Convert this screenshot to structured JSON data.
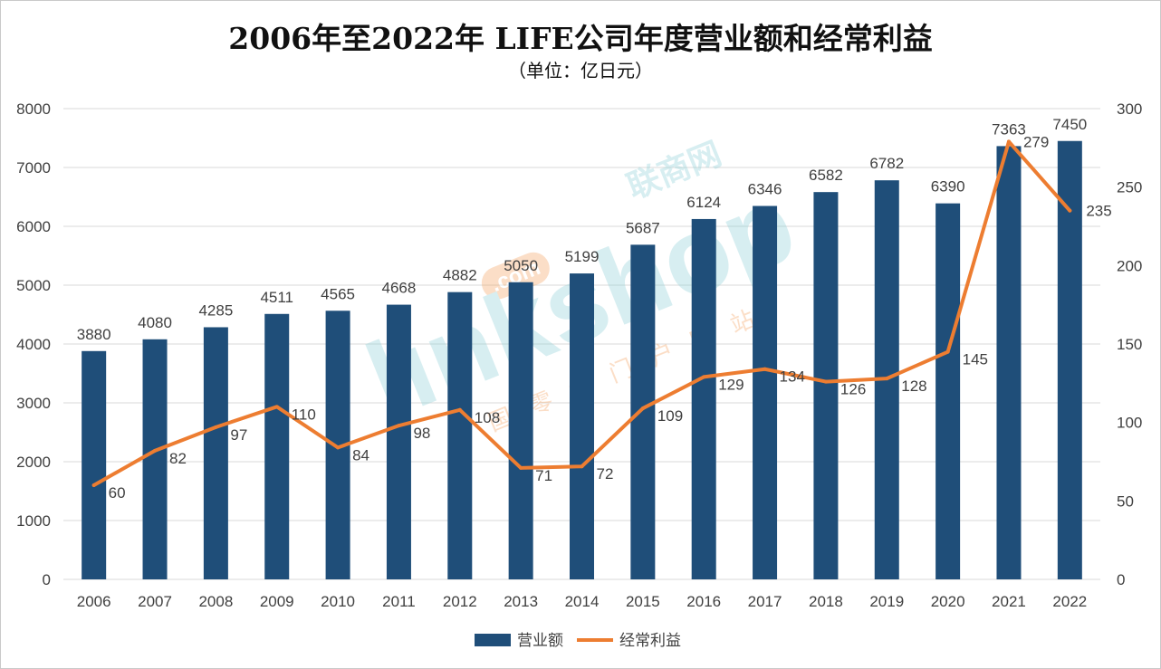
{
  "chart_data": {
    "type": "bar",
    "title": "2006年至2022年 LIFE公司年度营业额和经常利益",
    "subtitle": "（单位：亿日元）",
    "categories": [
      "2006",
      "2007",
      "2008",
      "2009",
      "2010",
      "2011",
      "2012",
      "2013",
      "2014",
      "2015",
      "2016",
      "2017",
      "2018",
      "2019",
      "2020",
      "2021",
      "2022"
    ],
    "series": [
      {
        "name": "营业额",
        "type": "bar",
        "axis": "left",
        "color": "#1f4e79",
        "values": [
          3880,
          4080,
          4285,
          4511,
          4565,
          4668,
          4882,
          5050,
          5199,
          5687,
          6124,
          6346,
          6582,
          6782,
          6390,
          7363,
          7450
        ]
      },
      {
        "name": "经常利益",
        "type": "line",
        "axis": "right",
        "color": "#ed7d31",
        "values": [
          60,
          82,
          97,
          110,
          84,
          98,
          108,
          71,
          72,
          109,
          129,
          134,
          126,
          128,
          145,
          279,
          235
        ]
      }
    ],
    "ylim": [
      0,
      8000
    ],
    "yticks": [
      "0",
      "1000",
      "2000",
      "3000",
      "4000",
      "5000",
      "6000",
      "7000",
      "8000"
    ],
    "y2lim": [
      0,
      300
    ],
    "y2ticks": [
      "0",
      "50",
      "100",
      "150",
      "200",
      "250",
      "300"
    ],
    "grid": true,
    "legend_position": "bottom",
    "watermark_text": "linkshop .com 联商网 中国零售门户网站"
  }
}
